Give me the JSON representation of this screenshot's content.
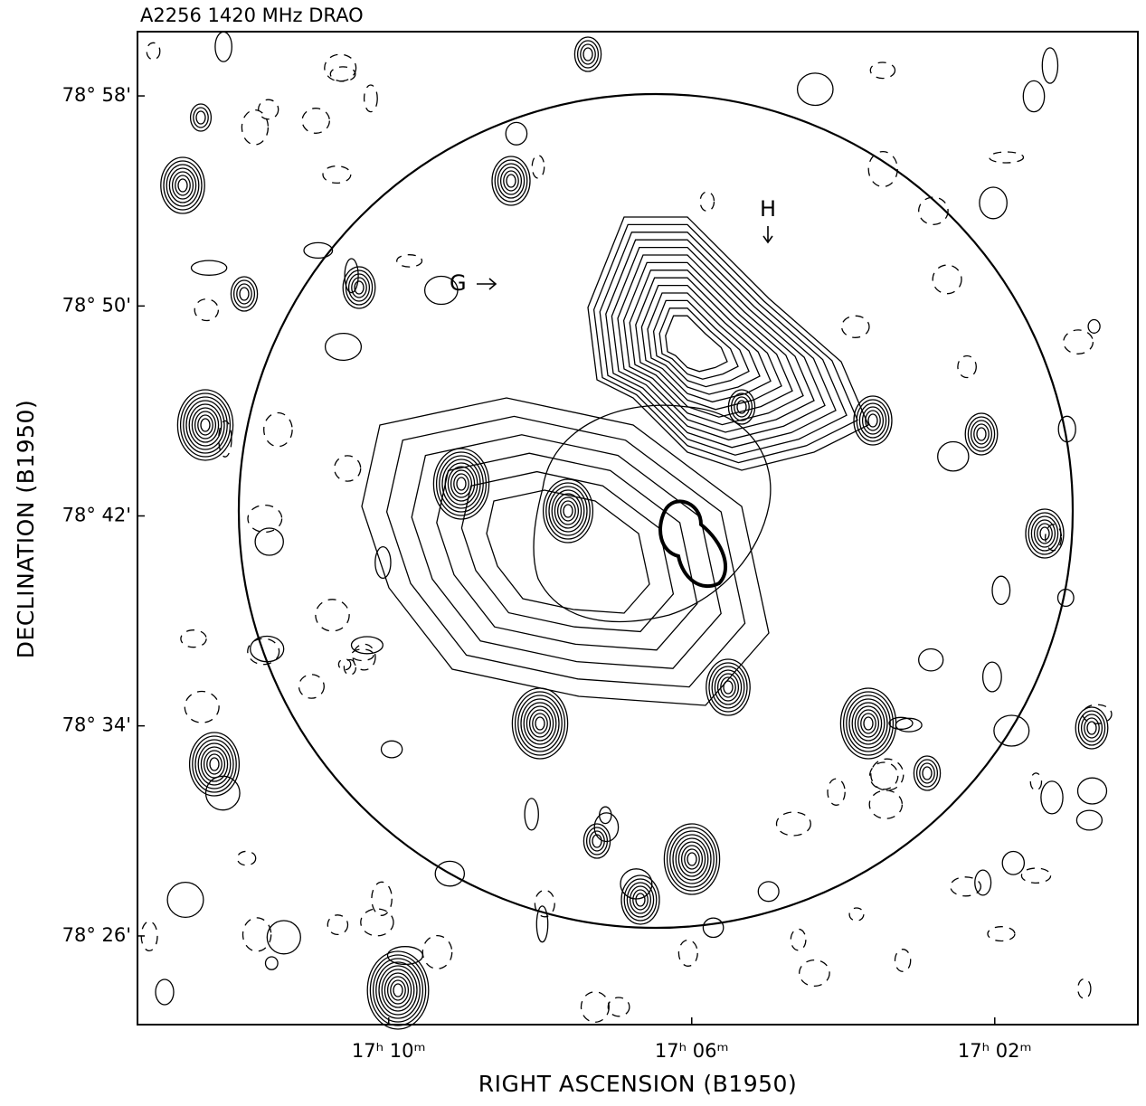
{
  "chart_data": {
    "type": "contour",
    "title": "A2256 1420 MHz DRAO",
    "xlabel": "RIGHT ASCENSION (B1950)",
    "ylabel": "DECLINATION (B1950)",
    "xlim": [
      17.222,
      17.0018
    ],
    "ylim": [
      78.377,
      79.0075
    ],
    "xticks": [
      {
        "value": 17.1667,
        "label": "17ʰ 10ᵐ"
      },
      {
        "value": 17.1,
        "label": "17ʰ 06ᵐ"
      },
      {
        "value": 17.0333,
        "label": "17ʰ 02ᵐ"
      }
    ],
    "yticks": [
      {
        "value": 78.9667,
        "label": "78° 58'"
      },
      {
        "value": 78.8333,
        "label": "78° 50'"
      },
      {
        "value": 78.7,
        "label": "78° 42'"
      },
      {
        "value": 78.5667,
        "label": "78° 34'"
      },
      {
        "value": 78.4333,
        "label": "78° 26'"
      }
    ],
    "annotations": [
      "G",
      "H"
    ]
  }
}
